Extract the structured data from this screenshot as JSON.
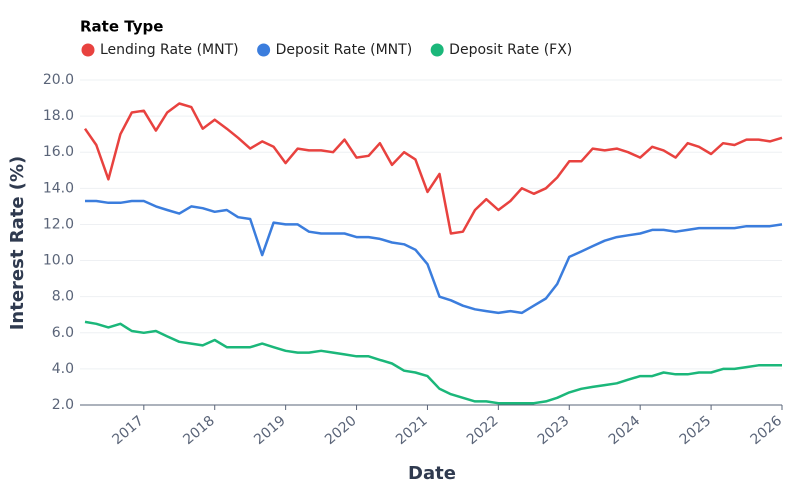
{
  "chart_data": {
    "type": "line",
    "legend_title": "Rate Type",
    "xlabel": "Date",
    "ylabel": "Interest Rate (%)",
    "x": [
      2016.17,
      2016.33,
      2016.5,
      2016.67,
      2016.83,
      2017.0,
      2017.17,
      2017.33,
      2017.5,
      2017.67,
      2017.83,
      2018.0,
      2018.17,
      2018.33,
      2018.5,
      2018.67,
      2018.83,
      2019.0,
      2019.17,
      2019.33,
      2019.5,
      2019.67,
      2019.83,
      2020.0,
      2020.17,
      2020.33,
      2020.5,
      2020.67,
      2020.83,
      2021.0,
      2021.17,
      2021.33,
      2021.5,
      2021.67,
      2021.83,
      2022.0,
      2022.17,
      2022.33,
      2022.5,
      2022.67,
      2022.83,
      2023.0,
      2023.17,
      2023.33,
      2023.5,
      2023.67,
      2023.83,
      2024.0,
      2024.17,
      2024.33,
      2024.5,
      2024.67,
      2024.83,
      2025.0,
      2025.17,
      2025.33,
      2025.5,
      2025.67,
      2025.83,
      2026.0
    ],
    "series": [
      {
        "name": "Lending Rate (MNT)",
        "color": "#e8423f",
        "values": [
          17.3,
          16.4,
          14.5,
          17.0,
          18.2,
          18.3,
          17.2,
          18.2,
          18.7,
          18.5,
          17.3,
          17.8,
          17.3,
          16.8,
          16.2,
          16.6,
          16.3,
          15.4,
          16.2,
          16.1,
          16.1,
          16.0,
          16.7,
          15.7,
          15.8,
          16.5,
          15.3,
          16.0,
          15.6,
          13.8,
          14.8,
          11.5,
          11.6,
          12.8,
          13.4,
          12.8,
          13.3,
          14.0,
          13.7,
          14.0,
          14.6,
          15.5,
          15.5,
          16.2,
          16.1,
          16.2,
          16.0,
          15.7,
          16.3,
          16.1,
          15.7,
          16.5,
          16.3,
          15.9,
          16.5,
          16.4,
          16.7,
          16.7,
          16.6,
          16.8
        ]
      },
      {
        "name": "Deposit Rate (MNT)",
        "color": "#3b7ddd",
        "values": [
          13.3,
          13.3,
          13.2,
          13.2,
          13.3,
          13.3,
          13.0,
          12.8,
          12.6,
          13.0,
          12.9,
          12.7,
          12.8,
          12.4,
          12.3,
          10.3,
          12.1,
          12.0,
          12.0,
          11.6,
          11.5,
          11.5,
          11.5,
          11.3,
          11.3,
          11.2,
          11.0,
          10.9,
          10.6,
          9.8,
          8.0,
          7.8,
          7.5,
          7.3,
          7.2,
          7.1,
          7.2,
          7.1,
          7.5,
          7.9,
          8.7,
          10.2,
          10.5,
          10.8,
          11.1,
          11.3,
          11.4,
          11.5,
          11.7,
          11.7,
          11.6,
          11.7,
          11.8,
          11.8,
          11.8,
          11.8,
          11.9,
          11.9,
          11.9,
          12.0
        ]
      },
      {
        "name": "Deposit Rate (FX)",
        "color": "#1bb77a",
        "values": [
          6.6,
          6.5,
          6.3,
          6.5,
          6.1,
          6.0,
          6.1,
          5.8,
          5.5,
          5.4,
          5.3,
          5.6,
          5.2,
          5.2,
          5.2,
          5.4,
          5.2,
          5.0,
          4.9,
          4.9,
          5.0,
          4.9,
          4.8,
          4.7,
          4.7,
          4.5,
          4.3,
          3.9,
          3.8,
          3.6,
          2.9,
          2.6,
          2.4,
          2.2,
          2.2,
          2.1,
          2.1,
          2.1,
          2.1,
          2.2,
          2.4,
          2.7,
          2.9,
          3.0,
          3.1,
          3.2,
          3.4,
          3.6,
          3.6,
          3.8,
          3.7,
          3.7,
          3.8,
          3.8,
          4.0,
          4.0,
          4.1,
          4.2,
          4.2,
          4.2
        ]
      }
    ],
    "xlim": [
      2016.1,
      2026.0
    ],
    "xticks": [
      2017,
      2018,
      2019,
      2020,
      2021,
      2022,
      2023,
      2024,
      2025,
      2026
    ],
    "ylim": [
      2.0,
      20.0
    ],
    "yticks": [
      {
        "value": 2,
        "label": "2.0"
      },
      {
        "value": 4,
        "label": "4.0"
      },
      {
        "value": 6,
        "label": "6.0"
      },
      {
        "value": 8,
        "label": "8.0"
      },
      {
        "value": 10,
        "label": "10.0"
      },
      {
        "value": 12,
        "label": "12.0"
      },
      {
        "value": 14,
        "label": "14.0"
      },
      {
        "value": 16,
        "label": "16.0"
      },
      {
        "value": 18,
        "label": "18.0"
      },
      {
        "value": 20,
        "label": "20.0"
      }
    ],
    "grid": true
  }
}
